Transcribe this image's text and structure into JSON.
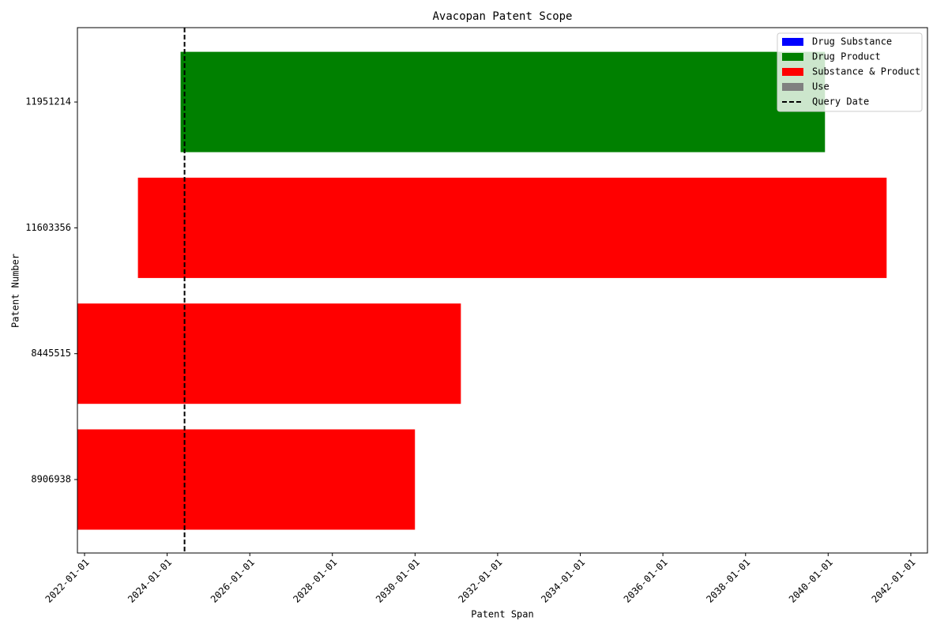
{
  "chart_data": {
    "type": "gantt",
    "title": "Avacopan Patent Scope",
    "xlabel": "Patent Span",
    "ylabel": "Patent Number",
    "categories": [
      "8906938",
      "8445515",
      "11603356",
      "11951214"
    ],
    "starts": [
      "2021-10-30",
      "2021-10-30",
      "2023-04-18",
      "2024-04-29"
    ],
    "ends": [
      "2029-12-31",
      "2031-02-10",
      "2041-06-01",
      "2039-12-04"
    ],
    "colors": [
      "#ff0000",
      "#ff0000",
      "#ff0000",
      "#008000"
    ],
    "xlim": [
      "2021-10-30",
      "2042-05-28"
    ],
    "xticks": [
      "2022-01-01",
      "2024-01-01",
      "2026-01-01",
      "2028-01-01",
      "2030-01-01",
      "2032-01-01",
      "2034-01-01",
      "2036-01-01",
      "2038-01-01",
      "2040-01-01",
      "2042-01-01"
    ],
    "legend": [
      {
        "name": "Drug Substance",
        "color": "#0000ff"
      },
      {
        "name": "Drug Product",
        "color": "#008000"
      },
      {
        "name": "Substance & Product",
        "color": "#ff0000"
      },
      {
        "name": "Use",
        "color": "#808080"
      }
    ],
    "query_line": {
      "name": "Query Date",
      "value": "2024-06-03",
      "color": "#000000"
    },
    "legend_position": "upper right"
  }
}
